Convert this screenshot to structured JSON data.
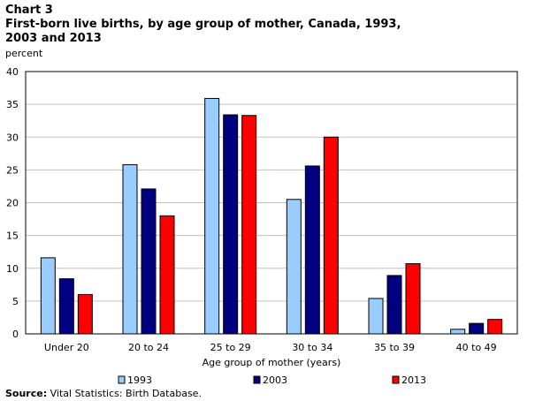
{
  "header": {
    "chart_label": "Chart 3",
    "title": "First-born live births, by age group of mother, Canada, 1993, 2003 and 2013",
    "unit": "percent"
  },
  "source": {
    "prefix": "Source:",
    "text": " Vital Statistics: Birth Database."
  },
  "colors": {
    "1993": "#99ccff",
    "2003": "#000080",
    "2013": "#ff0000",
    "grid": "#c0c0c0",
    "frame": "#000000"
  },
  "chart_data": {
    "type": "bar",
    "categories": [
      "Under 20",
      "20 to 24",
      "25 to 29",
      "30 to 34",
      "35 to 39",
      "40 to 49"
    ],
    "series": [
      {
        "name": "1993",
        "values": [
          11.6,
          25.8,
          35.9,
          20.5,
          5.4,
          0.7
        ]
      },
      {
        "name": "2003",
        "values": [
          8.4,
          22.1,
          33.4,
          25.6,
          8.9,
          1.6
        ]
      },
      {
        "name": "2013",
        "values": [
          6.0,
          18.0,
          33.3,
          30.0,
          10.7,
          2.2
        ]
      }
    ],
    "title": "First-born live births, by age group of mother, Canada, 1993, 2003 and 2013",
    "xlabel": "Age group of mother (years)",
    "ylabel": "percent",
    "ylim": [
      0,
      40
    ],
    "yticks": [
      0,
      5,
      10,
      15,
      20,
      25,
      30,
      35,
      40
    ],
    "grid": true,
    "legend": "bottom"
  }
}
